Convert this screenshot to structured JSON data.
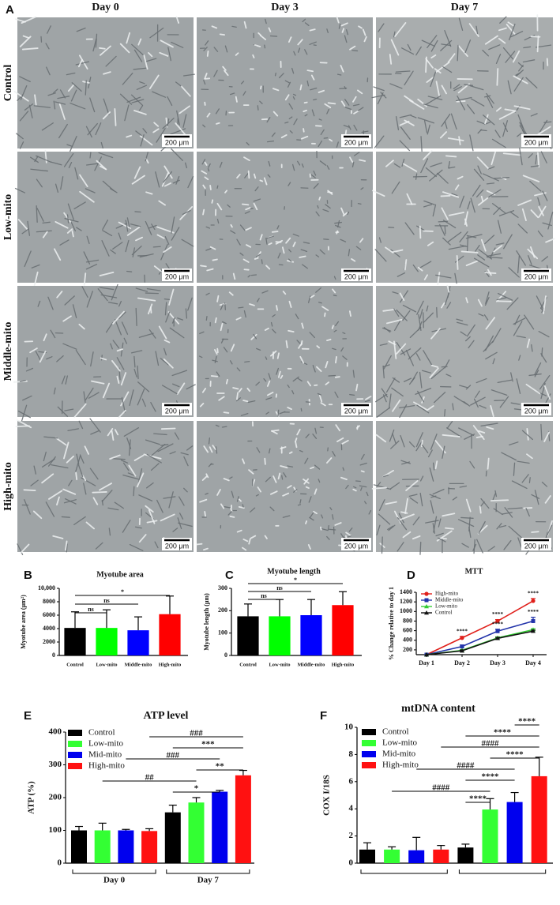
{
  "panel_a": {
    "label": "A",
    "columns": [
      "Day 0",
      "Day 3",
      "Day 7"
    ],
    "rows": [
      "Control",
      "Low-mito",
      "Middle-mito",
      "High-mito"
    ],
    "scale_bar": "200 μm"
  },
  "chart_data": [
    {
      "panel": "B",
      "type": "bar",
      "title": "Myotube area",
      "y_label": "Myotube area (μm²)",
      "categories": [
        "Control",
        "Low-mito",
        "Middle-mito",
        "High-mito"
      ],
      "colors": [
        "#000000",
        "#00ff00",
        "#0000ff",
        "#ff0000"
      ],
      "values": [
        4100,
        4100,
        3750,
        6150
      ],
      "errors": [
        2400,
        2700,
        2000,
        2700
      ],
      "ylim": [
        0,
        10000
      ],
      "yticks": [
        0,
        2000,
        4000,
        6000,
        8000,
        {
          "value": 10000,
          "label": "10,000"
        }
      ],
      "annotations": [
        {
          "text": "*",
          "from": 0,
          "to": 3
        },
        {
          "text": "ns",
          "from": 0,
          "to": 2
        },
        {
          "text": "ns",
          "from": 0,
          "to": 1
        }
      ]
    },
    {
      "panel": "C",
      "type": "bar",
      "title": "Myotube length",
      "y_label": "Myotube length (μm)",
      "categories": [
        "Control",
        "Low-mito",
        "Middle-mito",
        "High-mito"
      ],
      "colors": [
        "#000000",
        "#00ff00",
        "#0000ff",
        "#ff0000"
      ],
      "values": [
        175,
        175,
        180,
        225
      ],
      "errors": [
        55,
        75,
        70,
        60
      ],
      "ylim": [
        0,
        300
      ],
      "yticks": [
        0,
        100,
        200,
        300
      ],
      "annotations": [
        {
          "text": "*",
          "from": 0,
          "to": 3
        },
        {
          "text": "ns",
          "from": 0,
          "to": 2
        },
        {
          "text": "ns",
          "from": 0,
          "to": 1
        }
      ]
    },
    {
      "panel": "D",
      "type": "line",
      "title": "MTT",
      "y_label": "% Change relative to day 1",
      "categories": [
        "Day 1",
        "Day 2",
        "Day 3",
        "Day 4"
      ],
      "ylim": [
        100,
        1400
      ],
      "yticks": [
        200,
        400,
        600,
        800,
        1000,
        1200,
        1400
      ],
      "legend": "top-left",
      "series": [
        {
          "name": "High-mito",
          "color": "#e0201b",
          "marker": "circle",
          "values": [
            100,
            450,
            800,
            1220
          ],
          "errors": [
            0,
            30,
            30,
            50
          ]
        },
        {
          "name": "Middle-mito",
          "color": "#2233aa",
          "marker": "square",
          "values": [
            100,
            270,
            590,
            800
          ],
          "errors": [
            0,
            30,
            40,
            80
          ]
        },
        {
          "name": "Low-mito",
          "color": "#33cc33",
          "marker": "triangle",
          "values": [
            100,
            190,
            450,
            620
          ],
          "errors": [
            0,
            15,
            20,
            20
          ]
        },
        {
          "name": "Control",
          "color": "#111111",
          "marker": "triangle",
          "values": [
            100,
            180,
            440,
            590
          ],
          "errors": [
            0,
            15,
            20,
            20
          ]
        }
      ],
      "annotations": [
        {
          "text": "****",
          "category": 1,
          "series": 0
        },
        {
          "text": "****",
          "category": 2,
          "series": 0
        },
        {
          "text": "****",
          "category": 2,
          "series": 1
        },
        {
          "text": "****",
          "category": 3,
          "series": 0
        },
        {
          "text": "****",
          "category": 3,
          "series": 1
        }
      ]
    },
    {
      "panel": "E",
      "type": "grouped_bar",
      "title": "ATP level",
      "y_label": "ATP (%)",
      "categories": [
        "Day 0",
        "Day 7"
      ],
      "legend": "top-left",
      "series": [
        {
          "name": "Control",
          "color": "#000000",
          "values": [
            100,
            155
          ],
          "errors": [
            12,
            22
          ]
        },
        {
          "name": "Low-mito",
          "color": "#33ff33",
          "values": [
            100,
            185
          ],
          "errors": [
            22,
            15
          ]
        },
        {
          "name": "Mid-mito",
          "color": "#0000ee",
          "values": [
            100,
            218
          ],
          "errors": [
            3,
            4
          ]
        },
        {
          "name": "High-mito",
          "color": "#ff1111",
          "values": [
            98,
            268
          ],
          "errors": [
            7,
            15
          ]
        }
      ],
      "ylim": [
        0,
        400
      ],
      "yticks": [
        0,
        100,
        200,
        300,
        400
      ],
      "annotations": [
        {
          "text": "###",
          "from": 3,
          "to": 7
        },
        {
          "text": "***",
          "from": 4,
          "to": 7
        },
        {
          "text": "###",
          "from": 2,
          "to": 6
        },
        {
          "text": "**",
          "from": 5,
          "to": 7
        },
        {
          "text": "##",
          "from": 1,
          "to": 5
        },
        {
          "text": "*",
          "from": 4,
          "to": 6
        }
      ]
    },
    {
      "panel": "F",
      "type": "grouped_bar",
      "title": "mtDNA content",
      "y_label": "COX I/18S",
      "categories": [
        null,
        null
      ],
      "legend": "top-left",
      "series": [
        {
          "name": "Control",
          "color": "#000000",
          "values": [
            1.0,
            1.15
          ],
          "errors": [
            0.5,
            0.25
          ]
        },
        {
          "name": "Low-mito",
          "color": "#33ff33",
          "values": [
            1.0,
            3.95
          ],
          "errors": [
            0.2,
            0.8
          ]
        },
        {
          "name": "Mid-mito",
          "color": "#0000ee",
          "values": [
            0.95,
            4.5
          ],
          "errors": [
            0.95,
            0.7
          ]
        },
        {
          "name": "High-mito",
          "color": "#ff1111",
          "values": [
            1.0,
            6.4
          ],
          "errors": [
            0.3,
            1.4
          ]
        }
      ],
      "ylim": [
        0,
        10
      ],
      "yticks": [
        0,
        2,
        4,
        6,
        8,
        10
      ],
      "annotations": [
        {
          "text": "****",
          "from": 6,
          "to": 7
        },
        {
          "text": "****",
          "from": 4,
          "to": 7
        },
        {
          "text": "####",
          "from": 3,
          "to": 7
        },
        {
          "text": "****",
          "from": 5,
          "to": 7
        },
        {
          "text": "####",
          "from": 2,
          "to": 6
        },
        {
          "text": "****",
          "from": 4,
          "to": 6
        },
        {
          "text": "####",
          "from": 1,
          "to": 5
        },
        {
          "text": "****",
          "from": 4,
          "to": 5
        }
      ]
    }
  ]
}
